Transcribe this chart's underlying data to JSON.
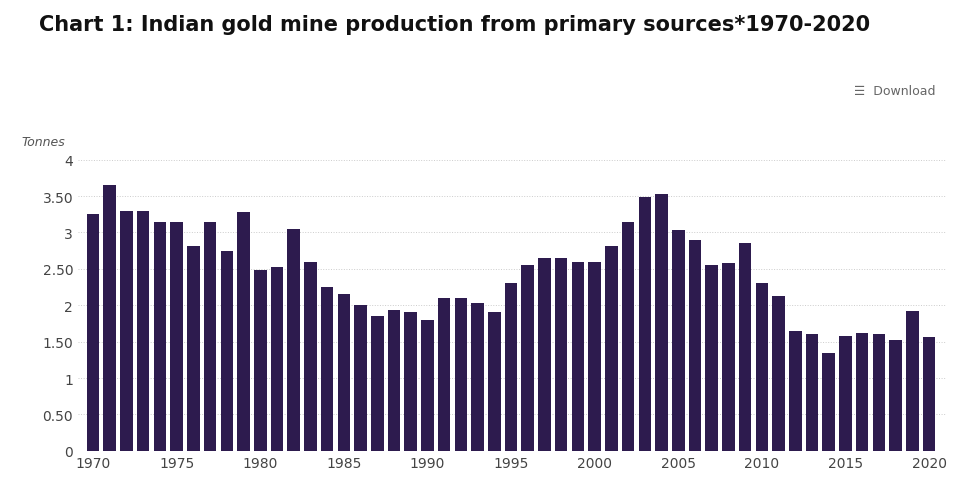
{
  "title": "Chart 1: Indian gold mine production from primary sources*1970-2020",
  "ylabel": "Tonnes",
  "bar_color": "#2d1b4e",
  "background_color": "#ffffff",
  "plot_bg_color": "#ffffff",
  "years": [
    1970,
    1971,
    1972,
    1973,
    1974,
    1975,
    1976,
    1977,
    1978,
    1979,
    1980,
    1981,
    1982,
    1983,
    1984,
    1985,
    1986,
    1987,
    1988,
    1989,
    1990,
    1991,
    1992,
    1993,
    1994,
    1995,
    1996,
    1997,
    1998,
    1999,
    2000,
    2001,
    2002,
    2003,
    2004,
    2005,
    2006,
    2007,
    2008,
    2009,
    2010,
    2011,
    2012,
    2013,
    2014,
    2015,
    2016,
    2017,
    2018,
    2019,
    2020
  ],
  "values": [
    3.25,
    3.65,
    3.3,
    3.3,
    3.15,
    3.15,
    2.82,
    3.15,
    2.75,
    3.28,
    2.48,
    2.52,
    3.05,
    2.6,
    2.25,
    2.15,
    2.0,
    1.85,
    1.93,
    1.9,
    1.8,
    2.1,
    2.1,
    2.03,
    1.9,
    2.3,
    2.55,
    2.65,
    2.65,
    2.6,
    2.6,
    2.82,
    3.15,
    3.48,
    3.53,
    3.03,
    2.9,
    2.55,
    2.58,
    2.85,
    2.3,
    2.12,
    1.65,
    1.6,
    1.35,
    1.58,
    1.62,
    1.6,
    1.52,
    1.92,
    1.57
  ],
  "ylim": [
    0,
    4
  ],
  "yticks": [
    0,
    0.5,
    1,
    1.5,
    2,
    2.5,
    3,
    3.5,
    4
  ],
  "ytick_labels": [
    "0",
    "0.50",
    "1",
    "1.50",
    "2",
    "2.50",
    "3",
    "3.50",
    "4"
  ],
  "xticks": [
    1970,
    1975,
    1980,
    1985,
    1990,
    1995,
    2000,
    2005,
    2010,
    2015,
    2020
  ],
  "grid_color": "#cccccc",
  "download_text": "☰  Download"
}
